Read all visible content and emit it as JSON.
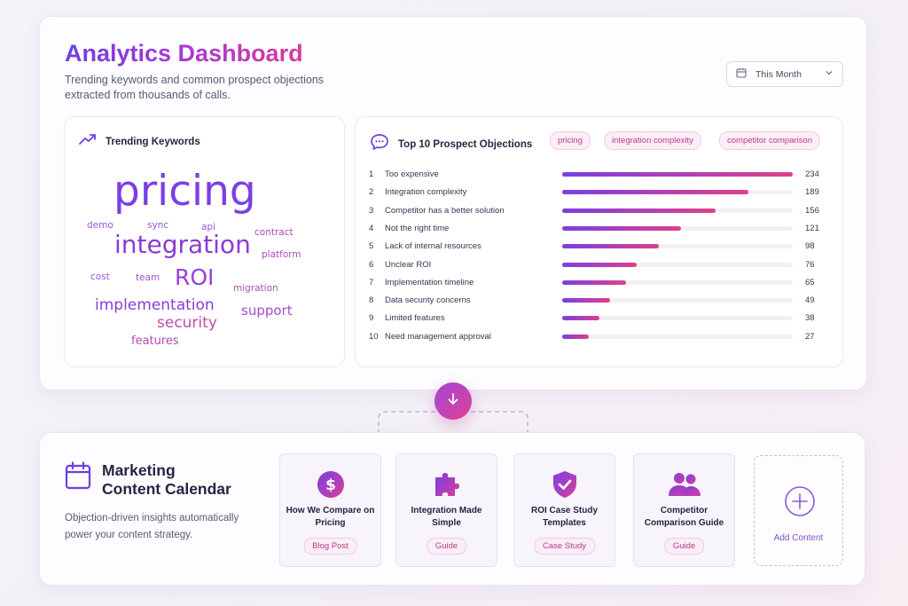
{
  "dashboard": {
    "title": "Analytics Dashboard",
    "subtitle": "Trending keywords and common prospect objections extracted from thousands of calls.",
    "date_filter": "This Month"
  },
  "trending": {
    "title": "Trending Keywords",
    "words": [
      {
        "text": "pricing",
        "color": "#7b3fe4"
      },
      {
        "text": "integration",
        "color": "#8a3ad6"
      },
      {
        "text": "ROI",
        "color": "#9a3ed8"
      },
      {
        "text": "implementation",
        "color": "#8a3ad6"
      },
      {
        "text": "security",
        "color": "#c04aa8"
      },
      {
        "text": "support",
        "color": "#a84acb"
      },
      {
        "text": "features",
        "color": "#b24db8"
      },
      {
        "text": "demo",
        "color": "#9a55d8"
      },
      {
        "text": "sync",
        "color": "#9a55d8"
      },
      {
        "text": "api",
        "color": "#9a55d8"
      },
      {
        "text": "contract",
        "color": "#b04ab8"
      },
      {
        "text": "platform",
        "color": "#b04ab8"
      },
      {
        "text": "cost",
        "color": "#9a55d8"
      },
      {
        "text": "team",
        "color": "#9a55d8"
      },
      {
        "text": "migration",
        "color": "#b04ab8"
      }
    ]
  },
  "objections": {
    "title": "Top 10 Prospect Objections",
    "chips": [
      "pricing",
      "integration complexity",
      "competitor comparison"
    ],
    "max": 234,
    "rows": [
      {
        "rank": "1",
        "label": "Too expensive",
        "value": 234
      },
      {
        "rank": "2",
        "label": "Integration complexity",
        "value": 189
      },
      {
        "rank": "3",
        "label": "Competitor has a better solution",
        "value": 156
      },
      {
        "rank": "4",
        "label": "Not the right time",
        "value": 121
      },
      {
        "rank": "5",
        "label": "Lack of internal resources",
        "value": 98
      },
      {
        "rank": "6",
        "label": "Unclear ROI",
        "value": 76
      },
      {
        "rank": "7",
        "label": "Implementation timeline",
        "value": 65
      },
      {
        "rank": "8",
        "label": "Data security concerns",
        "value": 49
      },
      {
        "rank": "9",
        "label": "Limited features",
        "value": 38
      },
      {
        "rank": "10",
        "label": "Need management approval",
        "value": 27
      }
    ]
  },
  "marketing": {
    "title_line1": "Marketing",
    "title_line2": "Content Calendar",
    "subtitle": "Objection-driven insights automatically power your content strategy.",
    "cards": [
      {
        "title": "How We Compare on Pricing",
        "tag": "Blog Post",
        "icon": "dollar-icon"
      },
      {
        "title": "Integration Made Simple",
        "tag": "Guide",
        "icon": "puzzle-icon"
      },
      {
        "title": "ROI Case Study Templates",
        "tag": "Case Study",
        "icon": "shield-check-icon"
      },
      {
        "title": "Competitor Comparison Guide",
        "tag": "Guide",
        "icon": "users-icon"
      }
    ],
    "add_label": "Add Content"
  },
  "colors": {
    "accent_purple": "#7b3fe4",
    "accent_pink": "#e0408c",
    "chip_bg": "#fbeef6"
  }
}
